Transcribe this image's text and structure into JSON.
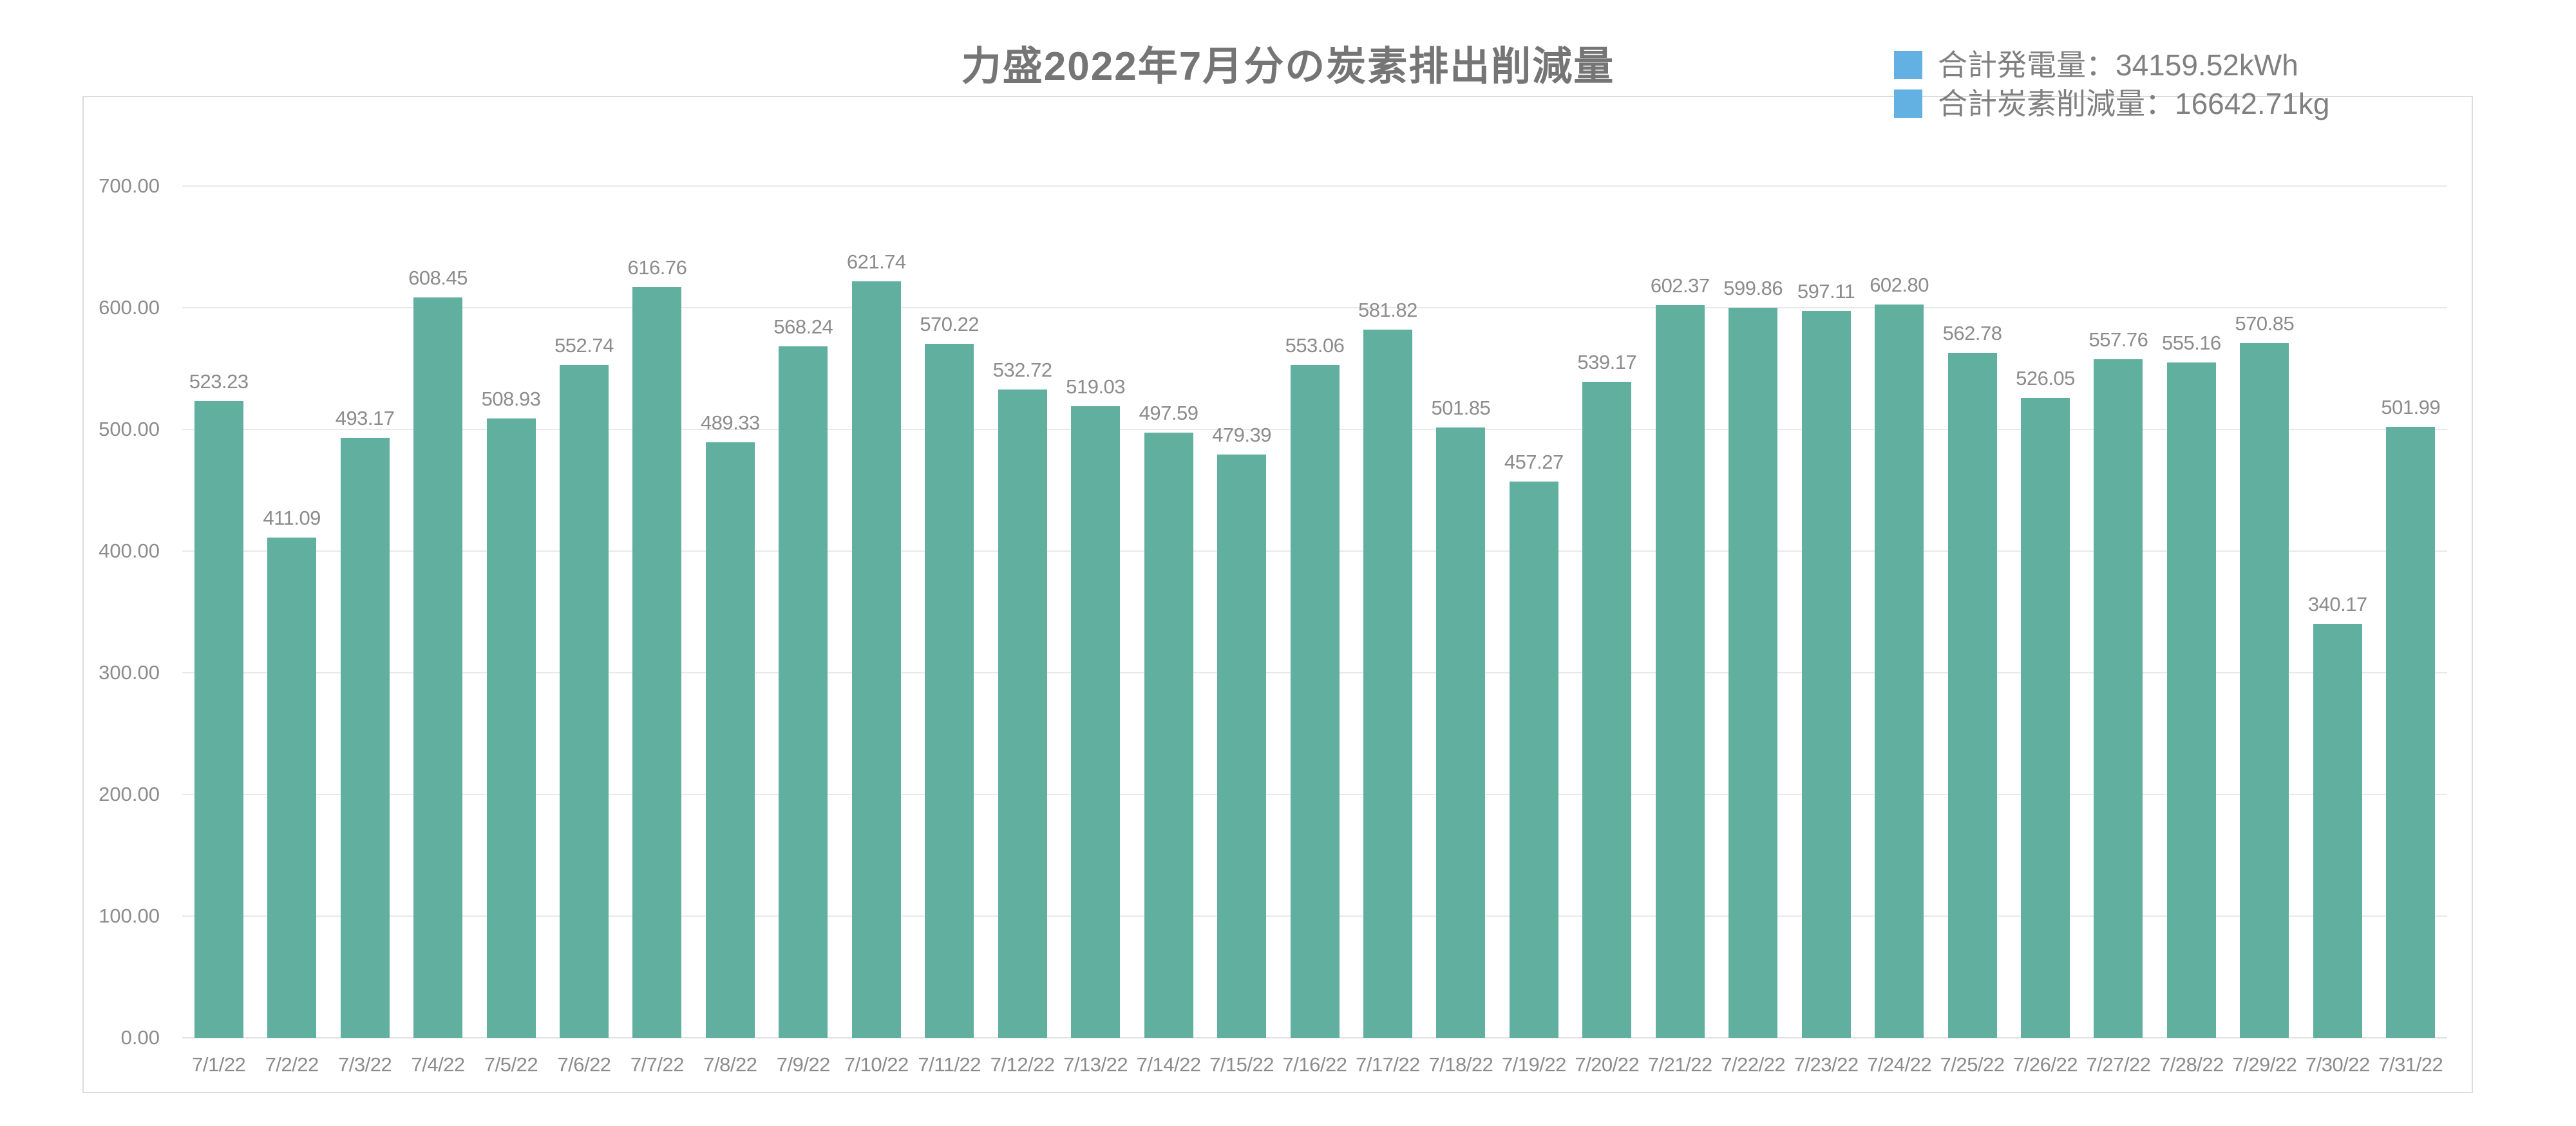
{
  "title": "力盛2022年7月分の炭素排出削減量",
  "legend": {
    "items": [
      {
        "label": "合計発電量：34159.52kWh",
        "swatch_color": "#63b1e3"
      },
      {
        "label": "合計炭素削減量：16642.71kg",
        "swatch_color": "#63b1e3"
      }
    ]
  },
  "chart_data": {
    "type": "bar",
    "title": "力盛2022年7月分の炭素排出削減量",
    "categories": [
      "7/1/22",
      "7/2/22",
      "7/3/22",
      "7/4/22",
      "7/5/22",
      "7/6/22",
      "7/7/22",
      "7/8/22",
      "7/9/22",
      "7/10/22",
      "7/11/22",
      "7/12/22",
      "7/13/22",
      "7/14/22",
      "7/15/22",
      "7/16/22",
      "7/17/22",
      "7/18/22",
      "7/19/22",
      "7/20/22",
      "7/21/22",
      "7/22/22",
      "7/23/22",
      "7/24/22",
      "7/25/22",
      "7/26/22",
      "7/27/22",
      "7/28/22",
      "7/29/22",
      "7/30/22",
      "7/31/22"
    ],
    "values": [
      523.23,
      411.09,
      493.17,
      608.45,
      508.93,
      552.74,
      616.76,
      489.33,
      568.24,
      621.74,
      570.22,
      532.72,
      519.03,
      497.59,
      479.39,
      553.06,
      581.82,
      501.85,
      457.27,
      539.17,
      602.37,
      599.86,
      597.11,
      602.8,
      562.78,
      526.05,
      557.76,
      555.16,
      570.85,
      340.17,
      501.99
    ],
    "value_label_format": "2-decimals",
    "bar_color": "#61af9f",
    "xlabel": "",
    "ylabel": "",
    "ylim": [
      0,
      700
    ],
    "ytick_step": 100,
    "ytick_labels": [
      "0.00",
      "100.00",
      "200.00",
      "300.00",
      "400.00",
      "500.00",
      "600.00",
      "700.00"
    ],
    "grid": true,
    "value_labels": true,
    "legend_position": "top-right"
  }
}
